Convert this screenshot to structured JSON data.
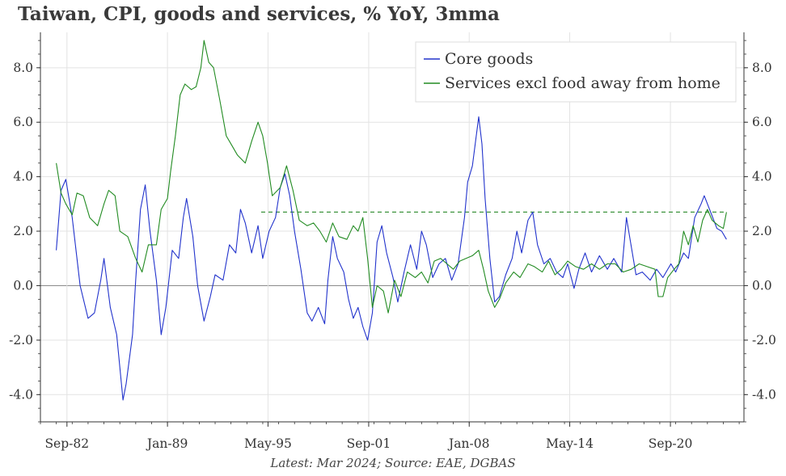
{
  "chart_data": {
    "type": "line",
    "title": "Taiwan, CPI, goods and services, % YoY, 3mma",
    "source": "Latest: Mar 2024; Source: EAE, DGBAS",
    "xlabel": "",
    "ylabel": "",
    "x_start": 1981.0,
    "x_end": 2025.3,
    "ylim": [
      -5.0,
      9.3
    ],
    "yticks": [
      -4.0,
      -2.0,
      0.0,
      2.0,
      4.0,
      6.0,
      8.0
    ],
    "ytick_labels": [
      "-4.0",
      "-2.0",
      "0.0",
      "2.0",
      "4.0",
      "6.0",
      "8.0"
    ],
    "xticks": [
      {
        "label": "Sep-82",
        "t": 1982.67
      },
      {
        "label": "Jan-89",
        "t": 1989.0
      },
      {
        "label": "May-95",
        "t": 1995.33
      },
      {
        "label": "Sep-01",
        "t": 2001.67
      },
      {
        "label": "Jan-08",
        "t": 2008.0
      },
      {
        "label": "May-14",
        "t": 2014.33
      },
      {
        "label": "Sep-20",
        "t": 2020.67
      }
    ],
    "grid": true,
    "legend_position": "top-right",
    "reference_line": {
      "name": "Services excl food away from home average",
      "y": 2.7,
      "x_from": 1994.9,
      "x_to": 2024.2,
      "color": "#2e8b2e"
    },
    "series": [
      {
        "name": "Core goods",
        "color": "#2233cc",
        "points": [
          [
            1982.0,
            1.3
          ],
          [
            1982.3,
            3.5
          ],
          [
            1982.6,
            3.9
          ],
          [
            1983.0,
            2.5
          ],
          [
            1983.5,
            0.0
          ],
          [
            1984.0,
            -1.2
          ],
          [
            1984.4,
            -1.0
          ],
          [
            1984.8,
            0.2
          ],
          [
            1985.0,
            1.0
          ],
          [
            1985.4,
            -0.8
          ],
          [
            1985.8,
            -1.8
          ],
          [
            1986.2,
            -4.2
          ],
          [
            1986.4,
            -3.6
          ],
          [
            1986.8,
            -1.8
          ],
          [
            1987.0,
            0.2
          ],
          [
            1987.3,
            2.8
          ],
          [
            1987.6,
            3.7
          ],
          [
            1987.9,
            2.0
          ],
          [
            1988.3,
            0.2
          ],
          [
            1988.6,
            -1.8
          ],
          [
            1988.9,
            -0.8
          ],
          [
            1989.3,
            1.3
          ],
          [
            1989.7,
            1.0
          ],
          [
            1990.0,
            2.5
          ],
          [
            1990.2,
            3.2
          ],
          [
            1990.6,
            1.8
          ],
          [
            1990.9,
            0.0
          ],
          [
            1991.3,
            -1.3
          ],
          [
            1991.7,
            -0.4
          ],
          [
            1992.0,
            0.4
          ],
          [
            1992.5,
            0.2
          ],
          [
            1992.9,
            1.5
          ],
          [
            1993.3,
            1.2
          ],
          [
            1993.6,
            2.8
          ],
          [
            1993.9,
            2.3
          ],
          [
            1994.3,
            1.2
          ],
          [
            1994.7,
            2.2
          ],
          [
            1995.0,
            1.0
          ],
          [
            1995.4,
            2.0
          ],
          [
            1995.8,
            2.5
          ],
          [
            1996.1,
            3.6
          ],
          [
            1996.4,
            4.1
          ],
          [
            1996.7,
            3.3
          ],
          [
            1997.0,
            2.0
          ],
          [
            1997.4,
            0.6
          ],
          [
            1997.8,
            -1.0
          ],
          [
            1998.1,
            -1.3
          ],
          [
            1998.5,
            -0.8
          ],
          [
            1998.9,
            -1.4
          ],
          [
            1999.1,
            0.2
          ],
          [
            1999.4,
            1.8
          ],
          [
            1999.7,
            1.0
          ],
          [
            2000.1,
            0.5
          ],
          [
            2000.4,
            -0.5
          ],
          [
            2000.7,
            -1.2
          ],
          [
            2001.0,
            -0.8
          ],
          [
            2001.3,
            -1.5
          ],
          [
            2001.6,
            -2.0
          ],
          [
            2001.9,
            -1.0
          ],
          [
            2002.2,
            1.6
          ],
          [
            2002.5,
            2.2
          ],
          [
            2002.8,
            1.2
          ],
          [
            2003.2,
            0.3
          ],
          [
            2003.5,
            -0.6
          ],
          [
            2003.9,
            0.5
          ],
          [
            2004.3,
            1.5
          ],
          [
            2004.7,
            0.6
          ],
          [
            2005.0,
            2.0
          ],
          [
            2005.3,
            1.5
          ],
          [
            2005.7,
            0.3
          ],
          [
            2006.1,
            0.8
          ],
          [
            2006.5,
            1.0
          ],
          [
            2006.9,
            0.2
          ],
          [
            2007.3,
            0.8
          ],
          [
            2007.7,
            2.5
          ],
          [
            2007.9,
            3.8
          ],
          [
            2008.2,
            4.4
          ],
          [
            2008.4,
            5.3
          ],
          [
            2008.6,
            6.2
          ],
          [
            2008.8,
            5.2
          ],
          [
            2009.0,
            3.2
          ],
          [
            2009.3,
            1.0
          ],
          [
            2009.6,
            -0.6
          ],
          [
            2009.9,
            -0.4
          ],
          [
            2010.3,
            0.4
          ],
          [
            2010.7,
            1.0
          ],
          [
            2011.0,
            2.0
          ],
          [
            2011.3,
            1.2
          ],
          [
            2011.7,
            2.4
          ],
          [
            2012.0,
            2.7
          ],
          [
            2012.3,
            1.5
          ],
          [
            2012.7,
            0.8
          ],
          [
            2013.1,
            1.0
          ],
          [
            2013.5,
            0.5
          ],
          [
            2013.9,
            0.3
          ],
          [
            2014.2,
            0.8
          ],
          [
            2014.6,
            -0.1
          ],
          [
            2014.9,
            0.6
          ],
          [
            2015.3,
            1.2
          ],
          [
            2015.7,
            0.5
          ],
          [
            2016.2,
            1.1
          ],
          [
            2016.7,
            0.6
          ],
          [
            2017.1,
            1.0
          ],
          [
            2017.6,
            0.5
          ],
          [
            2017.9,
            2.5
          ],
          [
            2018.1,
            1.8
          ],
          [
            2018.5,
            0.4
          ],
          [
            2018.9,
            0.5
          ],
          [
            2019.4,
            0.2
          ],
          [
            2019.8,
            0.6
          ],
          [
            2020.2,
            0.3
          ],
          [
            2020.7,
            0.8
          ],
          [
            2021.0,
            0.5
          ],
          [
            2021.5,
            1.2
          ],
          [
            2021.8,
            1.0
          ],
          [
            2022.2,
            2.5
          ],
          [
            2022.6,
            3.0
          ],
          [
            2022.8,
            3.3
          ],
          [
            2023.2,
            2.7
          ],
          [
            2023.6,
            2.1
          ],
          [
            2023.9,
            2.0
          ],
          [
            2024.2,
            1.7
          ]
        ]
      },
      {
        "name": "Services excl food away from home",
        "color": "#228b22",
        "points": [
          [
            1982.0,
            4.5
          ],
          [
            1982.3,
            3.4
          ],
          [
            1982.6,
            3.0
          ],
          [
            1983.0,
            2.6
          ],
          [
            1983.3,
            3.4
          ],
          [
            1983.7,
            3.3
          ],
          [
            1984.1,
            2.5
          ],
          [
            1984.6,
            2.2
          ],
          [
            1985.0,
            3.0
          ],
          [
            1985.3,
            3.5
          ],
          [
            1985.7,
            3.3
          ],
          [
            1986.0,
            2.0
          ],
          [
            1986.5,
            1.8
          ],
          [
            1987.0,
            1.0
          ],
          [
            1987.4,
            0.5
          ],
          [
            1987.8,
            1.5
          ],
          [
            1988.3,
            1.5
          ],
          [
            1988.6,
            2.8
          ],
          [
            1989.0,
            3.2
          ],
          [
            1989.2,
            4.2
          ],
          [
            1989.5,
            5.5
          ],
          [
            1989.8,
            7.0
          ],
          [
            1990.1,
            7.4
          ],
          [
            1990.5,
            7.2
          ],
          [
            1990.8,
            7.3
          ],
          [
            1991.1,
            8.0
          ],
          [
            1991.3,
            9.0
          ],
          [
            1991.6,
            8.2
          ],
          [
            1991.9,
            8.0
          ],
          [
            1992.3,
            6.8
          ],
          [
            1992.7,
            5.5
          ],
          [
            1993.0,
            5.2
          ],
          [
            1993.4,
            4.8
          ],
          [
            1993.9,
            4.5
          ],
          [
            1994.3,
            5.3
          ],
          [
            1994.7,
            6.0
          ],
          [
            1995.0,
            5.5
          ],
          [
            1995.3,
            4.5
          ],
          [
            1995.6,
            3.3
          ],
          [
            1996.1,
            3.6
          ],
          [
            1996.5,
            4.4
          ],
          [
            1996.9,
            3.5
          ],
          [
            1997.3,
            2.4
          ],
          [
            1997.8,
            2.2
          ],
          [
            1998.2,
            2.3
          ],
          [
            1998.6,
            2.0
          ],
          [
            1999.0,
            1.6
          ],
          [
            1999.4,
            2.3
          ],
          [
            1999.8,
            1.8
          ],
          [
            2000.3,
            1.7
          ],
          [
            2000.7,
            2.2
          ],
          [
            2001.0,
            2.0
          ],
          [
            2001.3,
            2.5
          ],
          [
            2001.6,
            1.0
          ],
          [
            2001.9,
            -0.8
          ],
          [
            2002.2,
            0.0
          ],
          [
            2002.6,
            -0.2
          ],
          [
            2002.9,
            -1.0
          ],
          [
            2003.3,
            0.2
          ],
          [
            2003.7,
            -0.4
          ],
          [
            2004.1,
            0.5
          ],
          [
            2004.6,
            0.3
          ],
          [
            2005.0,
            0.5
          ],
          [
            2005.4,
            0.1
          ],
          [
            2005.8,
            0.9
          ],
          [
            2006.2,
            1.0
          ],
          [
            2006.6,
            0.8
          ],
          [
            2007.0,
            0.6
          ],
          [
            2007.4,
            0.9
          ],
          [
            2007.8,
            1.0
          ],
          [
            2008.2,
            1.1
          ],
          [
            2008.6,
            1.3
          ],
          [
            2008.9,
            0.6
          ],
          [
            2009.2,
            -0.2
          ],
          [
            2009.6,
            -0.8
          ],
          [
            2009.9,
            -0.5
          ],
          [
            2010.3,
            0.1
          ],
          [
            2010.8,
            0.5
          ],
          [
            2011.2,
            0.3
          ],
          [
            2011.7,
            0.8
          ],
          [
            2012.1,
            0.7
          ],
          [
            2012.6,
            0.5
          ],
          [
            2013.0,
            0.9
          ],
          [
            2013.4,
            0.4
          ],
          [
            2013.8,
            0.6
          ],
          [
            2014.2,
            0.9
          ],
          [
            2014.7,
            0.7
          ],
          [
            2015.2,
            0.6
          ],
          [
            2015.7,
            0.8
          ],
          [
            2016.2,
            0.6
          ],
          [
            2016.7,
            0.8
          ],
          [
            2017.2,
            0.8
          ],
          [
            2017.7,
            0.5
          ],
          [
            2018.2,
            0.6
          ],
          [
            2018.7,
            0.8
          ],
          [
            2019.2,
            0.7
          ],
          [
            2019.7,
            0.6
          ],
          [
            2019.9,
            -0.4
          ],
          [
            2020.2,
            -0.4
          ],
          [
            2020.5,
            0.3
          ],
          [
            2020.9,
            0.6
          ],
          [
            2021.2,
            0.8
          ],
          [
            2021.5,
            2.0
          ],
          [
            2021.8,
            1.5
          ],
          [
            2022.1,
            2.2
          ],
          [
            2022.4,
            1.6
          ],
          [
            2022.7,
            2.4
          ],
          [
            2023.0,
            2.8
          ],
          [
            2023.3,
            2.4
          ],
          [
            2023.7,
            2.2
          ],
          [
            2024.0,
            2.1
          ],
          [
            2024.2,
            2.7
          ]
        ]
      }
    ]
  }
}
